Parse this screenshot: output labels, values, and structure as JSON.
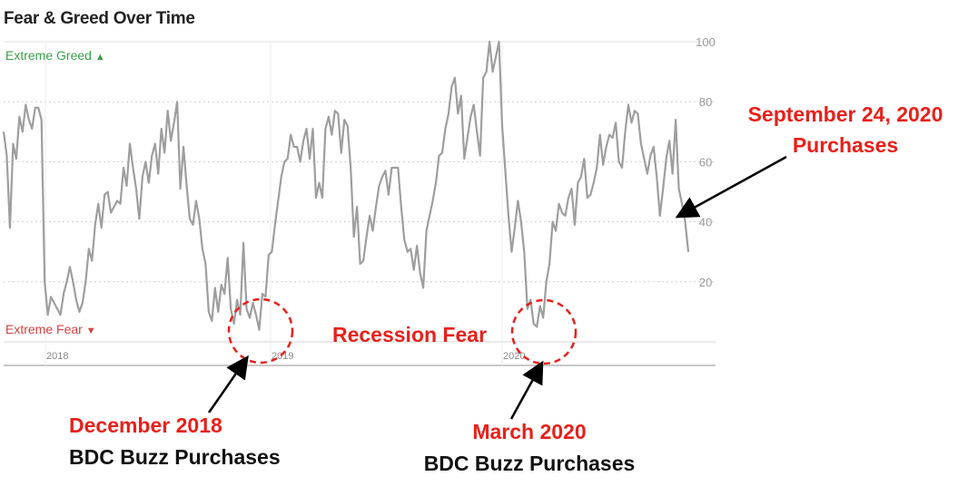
{
  "chart_data": {
    "type": "line",
    "title": "Fear & Greed Over Time",
    "y_ticks": [
      20,
      40,
      60,
      80,
      100
    ],
    "ylim": [
      0,
      100
    ],
    "x_ticks": [
      "2018",
      "2019",
      "2020"
    ],
    "grid": true,
    "zone_labels": {
      "top": "Extreme Greed",
      "bottom": "Extreme Fear"
    },
    "series": [
      {
        "values": [
          70,
          62,
          38,
          66,
          61,
          75,
          70,
          79,
          74,
          71,
          78,
          78,
          74,
          20,
          9,
          15,
          13,
          11,
          9,
          16,
          20,
          25,
          20,
          14,
          10,
          13,
          20,
          31,
          27,
          39,
          46,
          38,
          49,
          50,
          43,
          45,
          47,
          46,
          58,
          52,
          66,
          58,
          51,
          41,
          55,
          60,
          53,
          62,
          66,
          56,
          71,
          63,
          77,
          67,
          73,
          80,
          51,
          65,
          52,
          41,
          39,
          47,
          41,
          31,
          26,
          10,
          7,
          18,
          10,
          19,
          16,
          28,
          11,
          6,
          14,
          9,
          33,
          11,
          8,
          13,
          9,
          4,
          16,
          15,
          29,
          30,
          39,
          47,
          55,
          60,
          61,
          69,
          65,
          65,
          60,
          67,
          71,
          61,
          71,
          48,
          53,
          48,
          71,
          75,
          69,
          77,
          76,
          63,
          74,
          72,
          58,
          35,
          45,
          26,
          27,
          35,
          42,
          37,
          45,
          52,
          55,
          57,
          49,
          58,
          58,
          58,
          45,
          34,
          30,
          31,
          24,
          32,
          23,
          18,
          37,
          42,
          47,
          53,
          62,
          63,
          71,
          76,
          85,
          88,
          76,
          82,
          61,
          68,
          75,
          79,
          70,
          62,
          88,
          90,
          100,
          90,
          95,
          100,
          72,
          57,
          42,
          30,
          38,
          47,
          40,
          30,
          11,
          14,
          6,
          5,
          12,
          8,
          20,
          26,
          40,
          37,
          46,
          43,
          42,
          48,
          51,
          39,
          53,
          55,
          61,
          48,
          49,
          53,
          58,
          69,
          59,
          65,
          69,
          68,
          73,
          60,
          58,
          70,
          79,
          73,
          77,
          76,
          66,
          61,
          56,
          62,
          65,
          55,
          42,
          51,
          61,
          67,
          56,
          74,
          51,
          46,
          40,
          30
        ]
      }
    ]
  },
  "annotations": {
    "recession": "Recession Fear",
    "sep_date": "September 24, 2020",
    "sep_sub": "Purchases",
    "dec_date": "December 2018",
    "dec_sub": "BDC Buzz Purchases",
    "mar_date": "March 2020",
    "mar_sub": "BDC Buzz Purchases"
  }
}
